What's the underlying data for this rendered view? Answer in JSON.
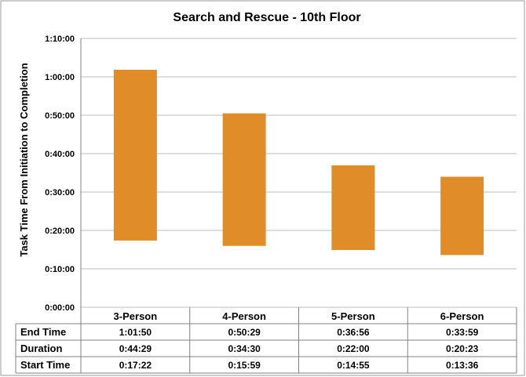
{
  "chart_data": {
    "type": "bar",
    "title": "Search and Rescue - 10th Floor",
    "ylabel": "Task Time From Initiation to Completion",
    "xlabel": "",
    "ylim": [
      "0:00:00",
      "1:10:00"
    ],
    "yticks": [
      "0:00:00",
      "0:10:00",
      "0:20:00",
      "0:30:00",
      "0:40:00",
      "0:50:00",
      "1:00:00",
      "1:10:00"
    ],
    "grid": true,
    "bar_color": "#e08c28",
    "categories": [
      "3-Person",
      "4-Person",
      "5-Person",
      "6-Person"
    ],
    "table": {
      "rows": [
        {
          "label": "End Time",
          "values": [
            "1:01:50",
            "0:50:29",
            "0:36:56",
            "0:33:59"
          ]
        },
        {
          "label": "Duration",
          "values": [
            "0:44:29",
            "0:34:30",
            "0:22:00",
            "0:20:23"
          ]
        },
        {
          "label": "Start Time",
          "values": [
            "0:17:22",
            "0:15:59",
            "0:14:55",
            "0:13:36"
          ]
        }
      ]
    }
  }
}
